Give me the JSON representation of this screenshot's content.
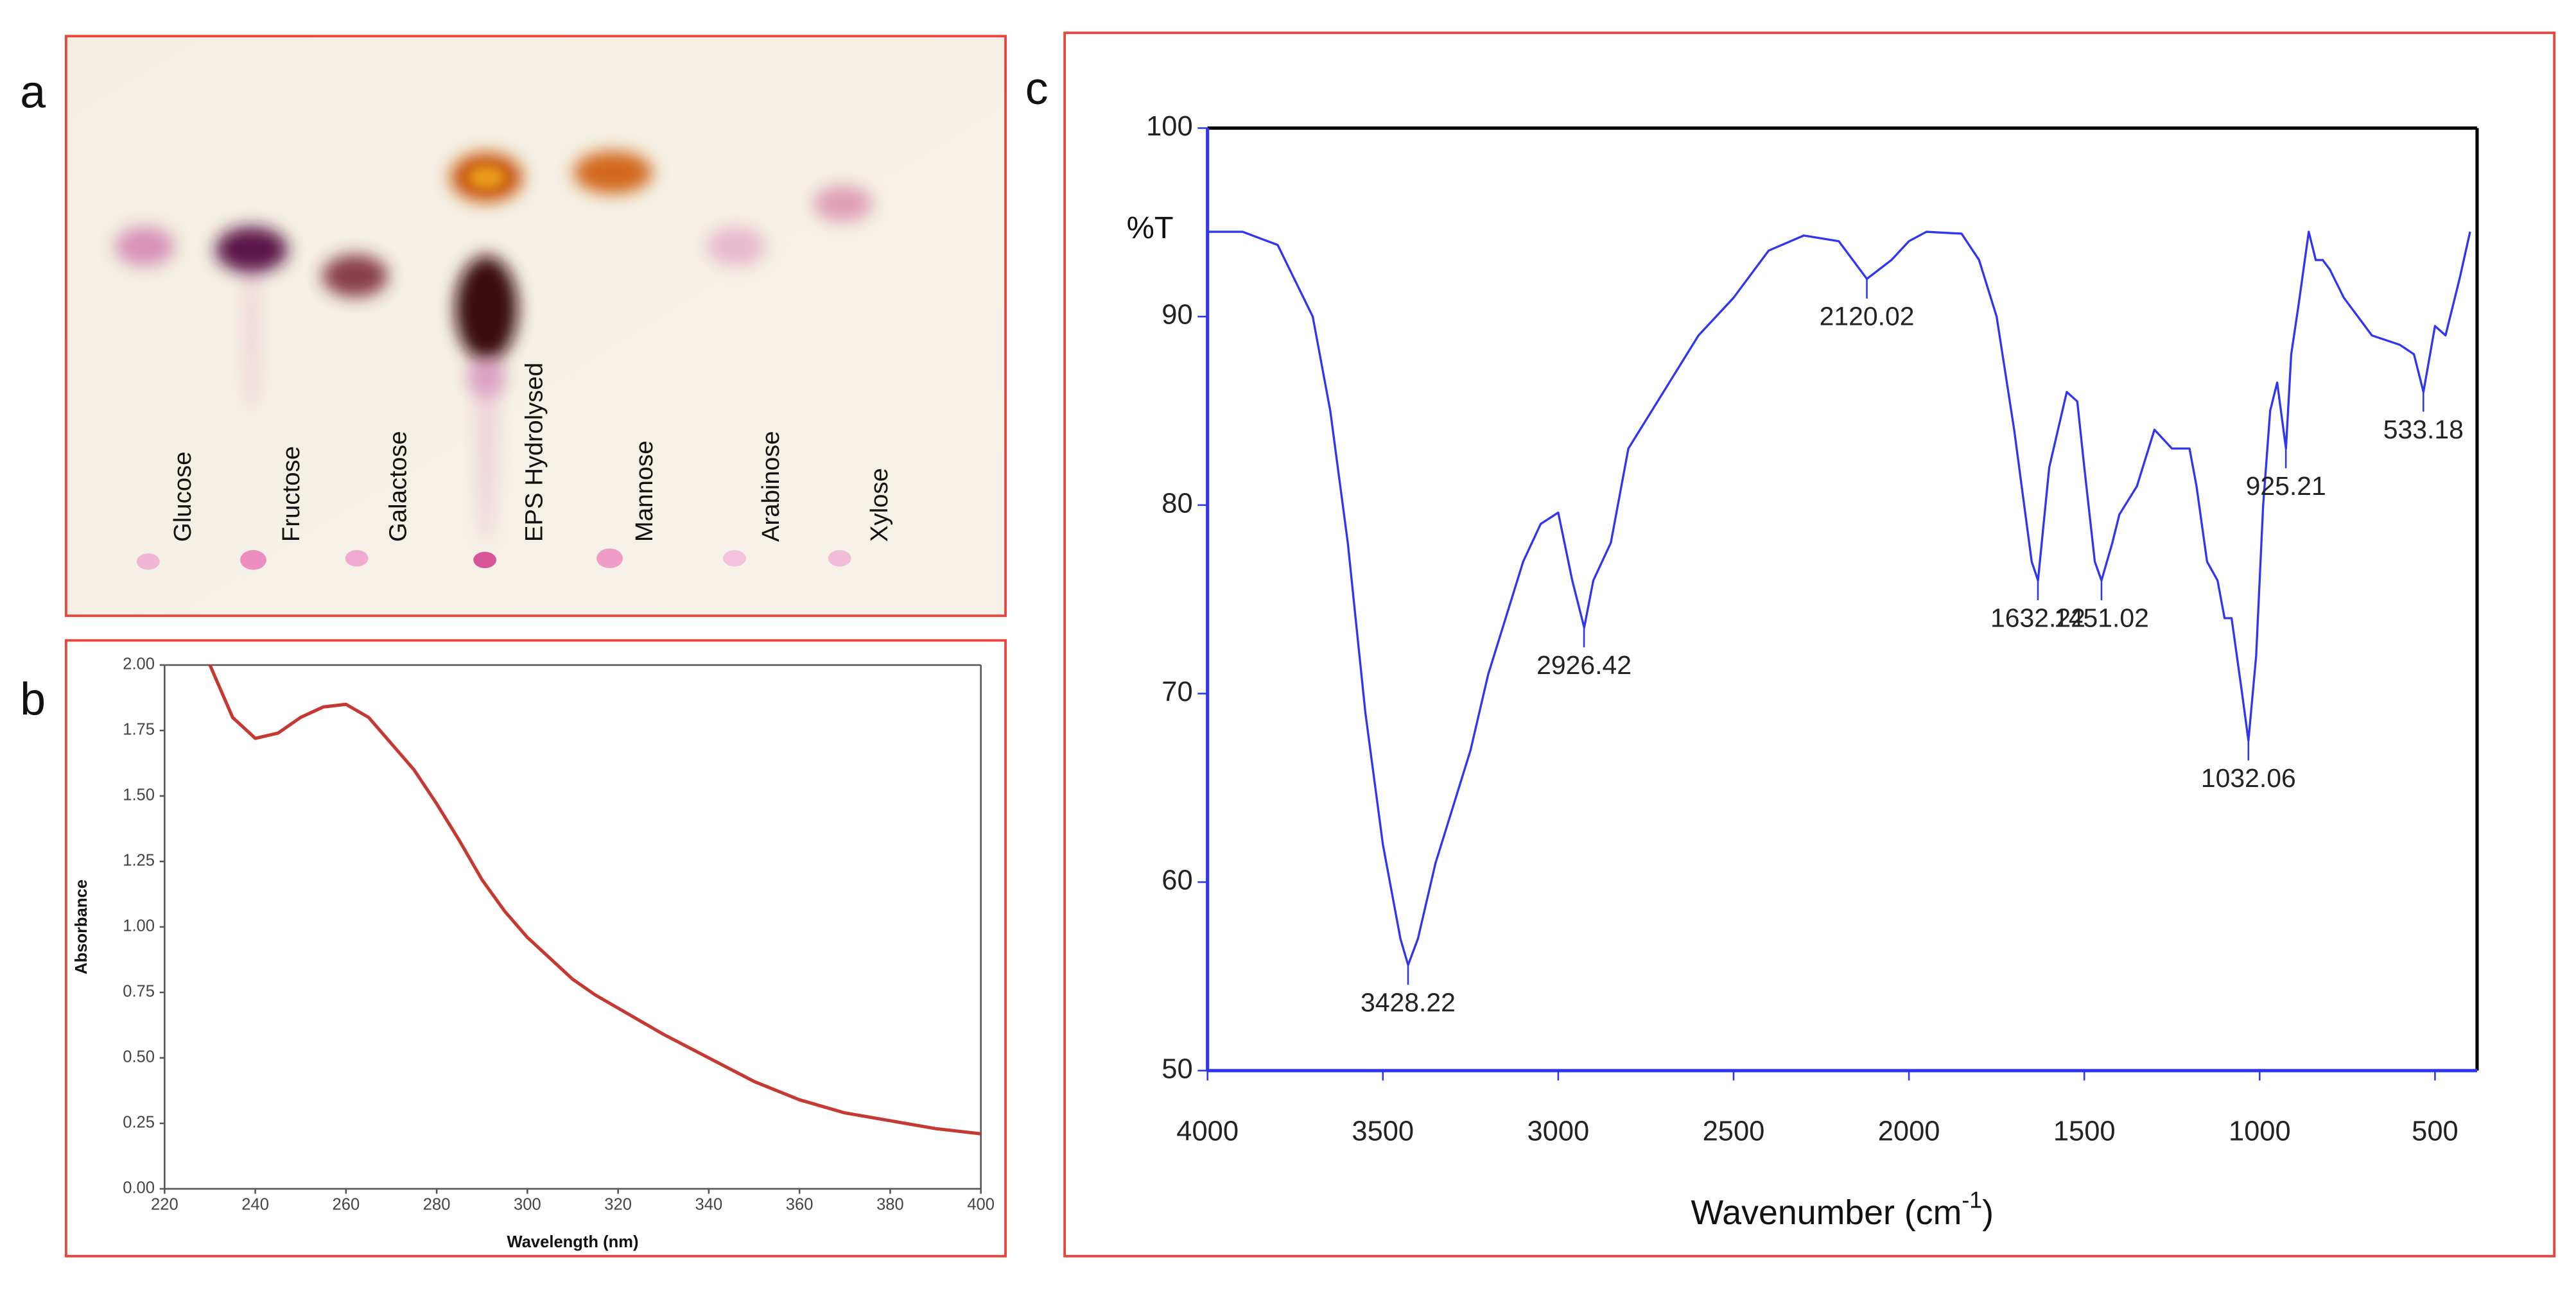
{
  "panel_labels": [
    "a",
    "b",
    "c"
  ],
  "tlc": {
    "lanes": [
      "Glucose",
      "Fructose",
      "Galactose",
      "EPS Hydrolysed",
      "Mannose",
      "Arabinose",
      "Xylose"
    ]
  },
  "chart_data": [
    {
      "type": "line",
      "xlabel": "Wavelength (nm)",
      "ylabel": "Absorbance",
      "x": [
        230,
        235,
        240,
        245,
        250,
        255,
        260,
        265,
        270,
        275,
        280,
        285,
        290,
        295,
        300,
        305,
        310,
        315,
        320,
        325,
        330,
        340,
        350,
        360,
        370,
        380,
        390,
        400
      ],
      "values": [
        2.0,
        1.8,
        1.72,
        1.74,
        1.8,
        1.84,
        1.85,
        1.8,
        1.7,
        1.6,
        1.47,
        1.33,
        1.18,
        1.06,
        0.96,
        0.88,
        0.8,
        0.74,
        0.69,
        0.64,
        0.59,
        0.5,
        0.41,
        0.34,
        0.29,
        0.26,
        0.23,
        0.21
      ],
      "color": "#c43a32",
      "xlim": [
        220,
        400
      ],
      "xticks": [
        220,
        240,
        260,
        280,
        300,
        320,
        340,
        360,
        380,
        400
      ],
      "ylim": [
        0,
        2
      ],
      "yticks": [
        {
          "value": 0,
          "label": "0.00"
        },
        {
          "value": 0.25,
          "label": "0.25"
        },
        {
          "value": 0.5,
          "label": "0.50"
        },
        {
          "value": 0.75,
          "label": "0.75"
        },
        {
          "value": 1,
          "label": "1.00"
        },
        {
          "value": 1.25,
          "label": "1.25"
        },
        {
          "value": 1.5,
          "label": "1.50"
        },
        {
          "value": 1.75,
          "label": "1.75"
        },
        {
          "value": 2,
          "label": "2.00"
        }
      ]
    },
    {
      "type": "line",
      "xlabel": {
        "text": "Wavenumber (cm",
        "sup": "-1",
        "end": ")"
      },
      "ylabel": "%T",
      "x": [
        4000,
        3900,
        3800,
        3700,
        3650,
        3600,
        3550,
        3500,
        3450,
        3428,
        3400,
        3350,
        3300,
        3250,
        3200,
        3150,
        3100,
        3050,
        3000,
        2960,
        2926,
        2900,
        2850,
        2800,
        2700,
        2600,
        2500,
        2400,
        2300,
        2200,
        2120,
        2050,
        2000,
        1950,
        1850,
        1800,
        1750,
        1700,
        1650,
        1632,
        1600,
        1550,
        1520,
        1500,
        1470,
        1451,
        1420,
        1400,
        1350,
        1300,
        1250,
        1200,
        1180,
        1150,
        1120,
        1100,
        1080,
        1050,
        1032,
        1010,
        990,
        970,
        950,
        925,
        910,
        890,
        860,
        840,
        820,
        800,
        760,
        720,
        680,
        600,
        560,
        533,
        500,
        470,
        430,
        400
      ],
      "values": [
        94.5,
        94.5,
        93.8,
        90,
        85,
        78,
        69,
        62,
        57,
        55.6,
        57,
        61,
        64,
        67,
        71,
        74,
        77,
        79,
        79.6,
        76,
        73.5,
        76,
        78,
        83,
        86,
        89,
        91,
        93.5,
        94.3,
        94,
        92,
        93,
        94,
        94.5,
        94.4,
        93,
        90,
        84,
        77,
        76,
        82,
        86,
        85.5,
        82,
        77,
        76,
        78,
        79.5,
        81,
        84,
        83,
        83,
        81,
        77,
        76,
        74,
        74,
        70,
        67.5,
        72,
        80,
        85,
        86.5,
        83,
        88,
        90.5,
        94.5,
        93,
        93,
        92.5,
        91,
        90,
        89,
        88.5,
        88,
        86,
        89.5,
        89,
        92,
        94.5
      ],
      "color": "#2f35f0",
      "xlim": [
        4000,
        380
      ],
      "xticks": [
        4000,
        3500,
        3000,
        2500,
        2000,
        1500,
        1000,
        500
      ],
      "ylim": [
        50,
        100
      ],
      "yticks": [
        50,
        60,
        70,
        80,
        90,
        100
      ],
      "annotations": [
        {
          "x": 3428.22,
          "y": 55.6
        },
        {
          "x": 2926.42,
          "y": 73.5
        },
        {
          "x": 2120.02,
          "y": 92
        },
        {
          "x": 1632.22,
          "y": 76
        },
        {
          "x": 1451.02,
          "y": 76
        },
        {
          "x": 1032.06,
          "y": 67.5
        },
        {
          "x": 925.21,
          "y": 83
        },
        {
          "x": 533.18,
          "y": 86
        }
      ]
    }
  ]
}
